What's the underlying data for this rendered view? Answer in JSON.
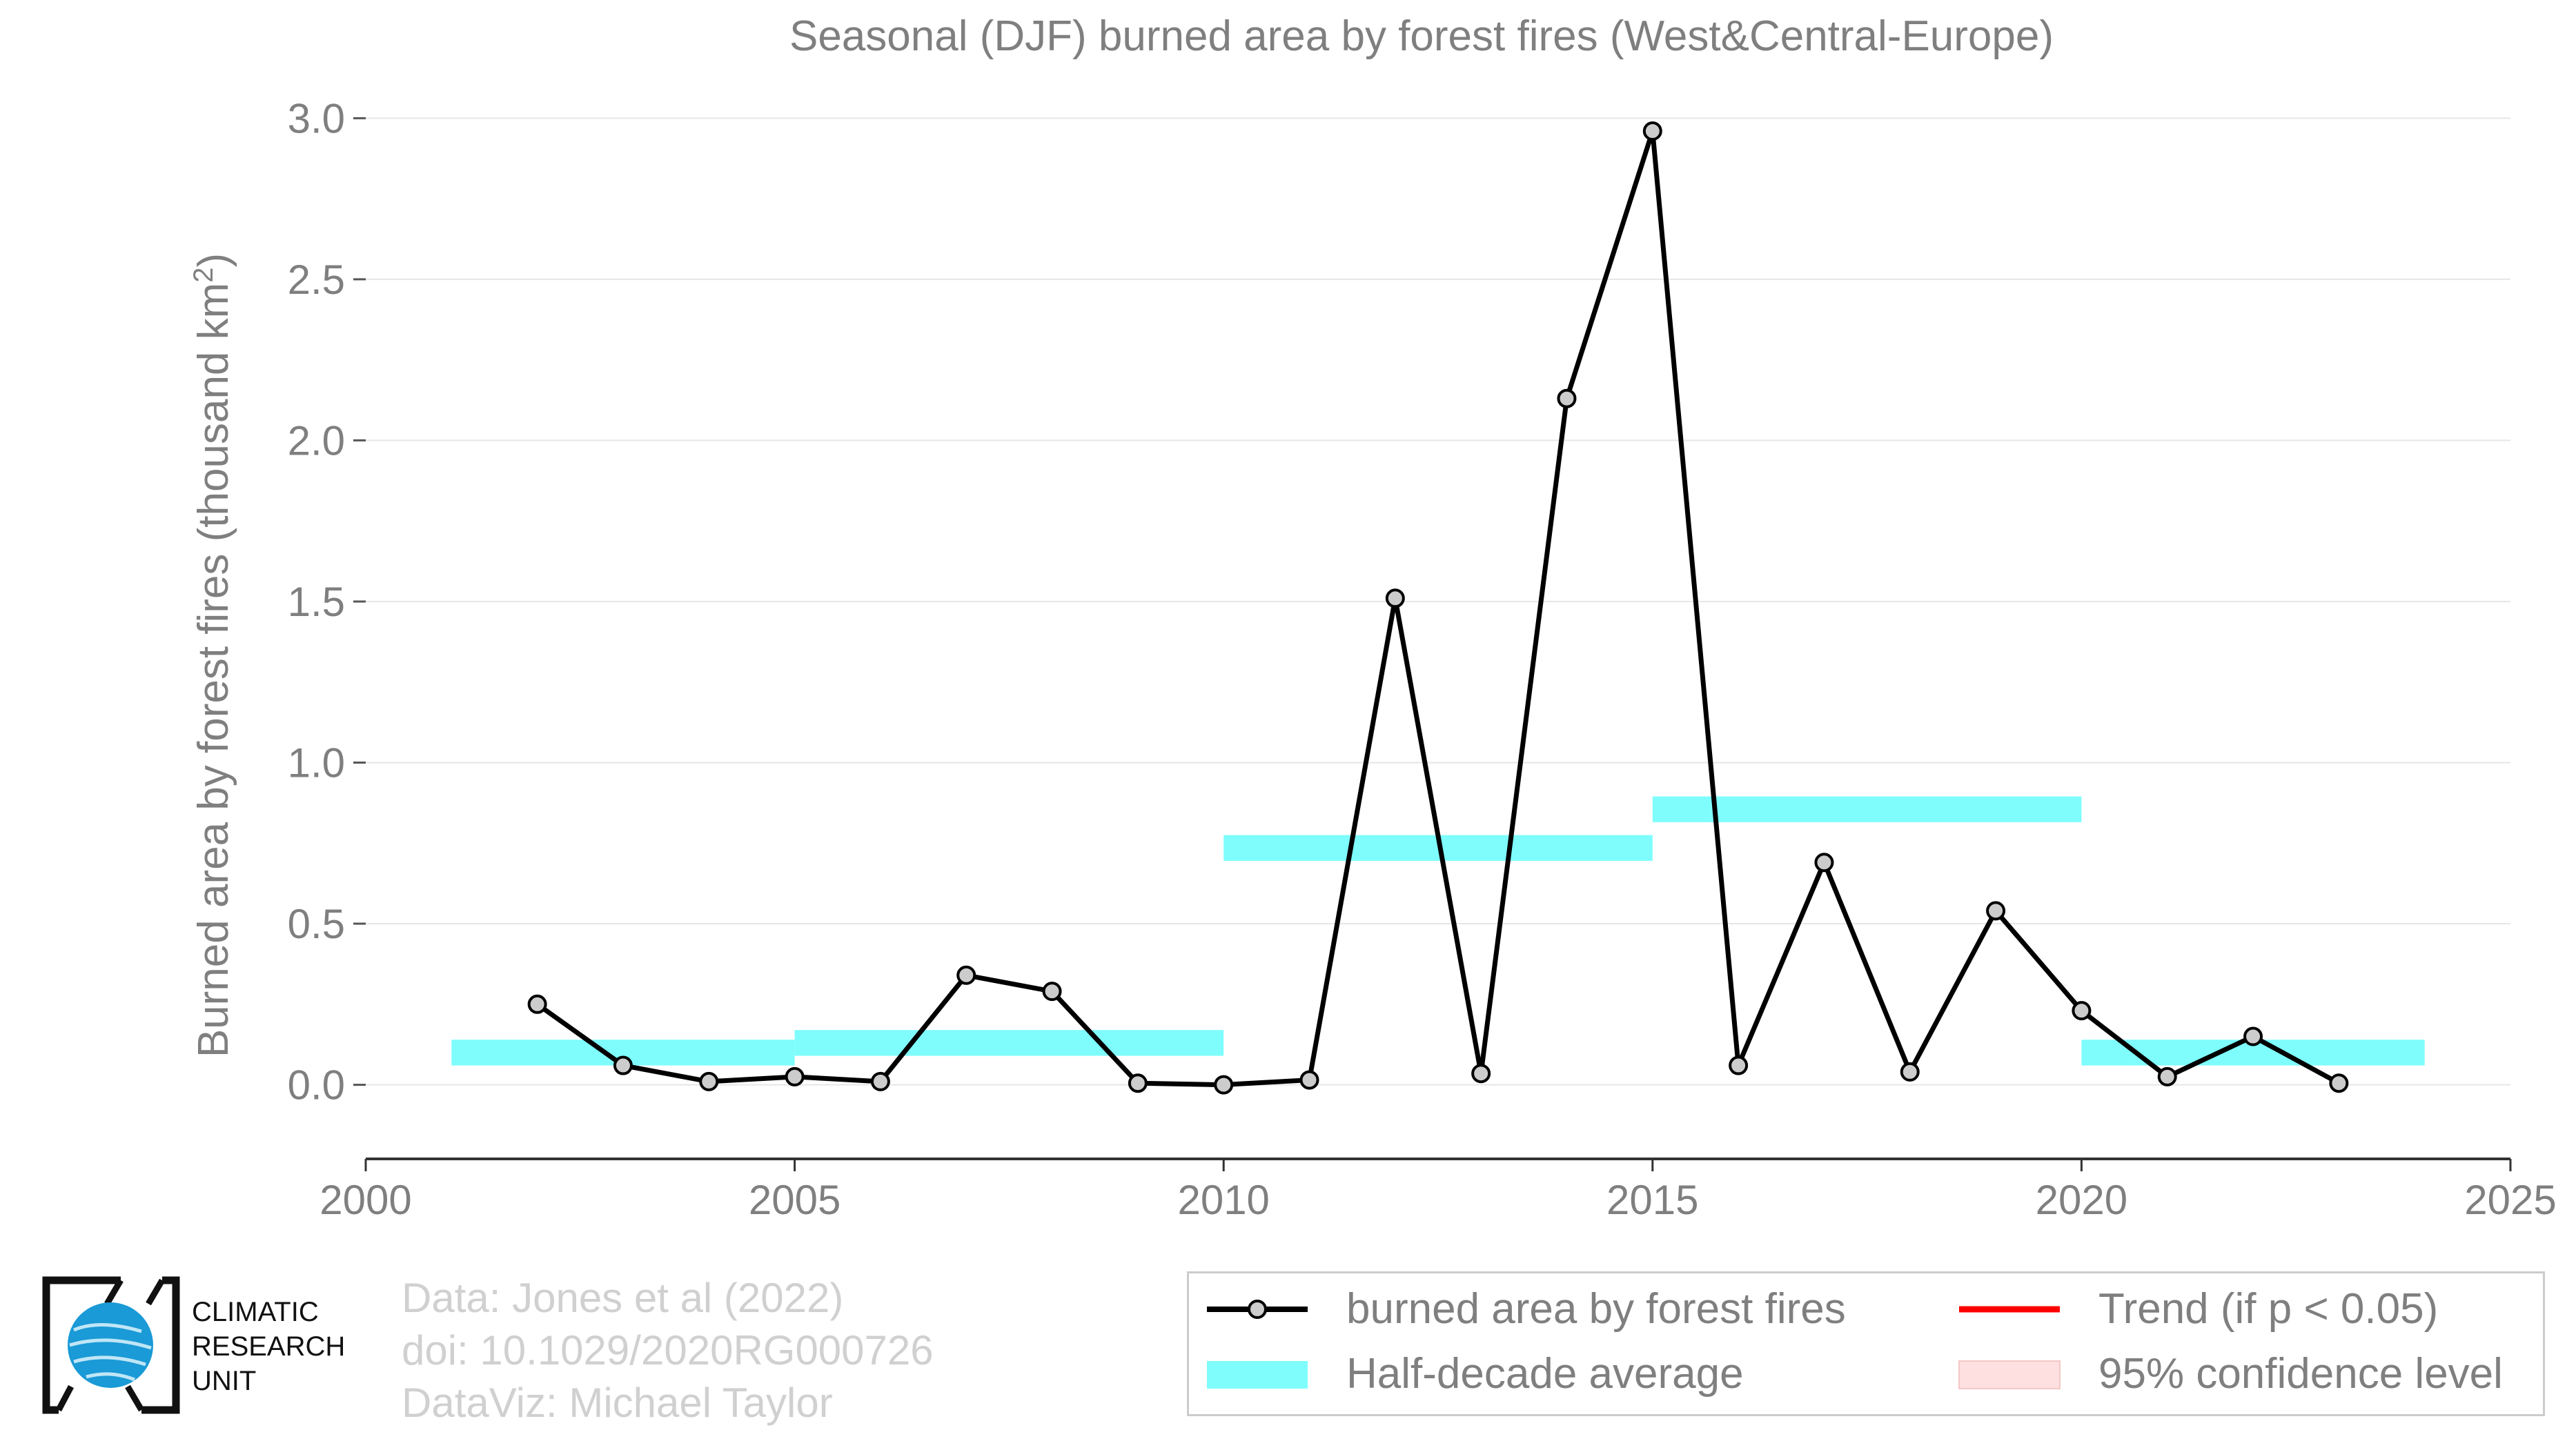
{
  "chart_data": {
    "type": "line",
    "title": "Seasonal (DJF) burned area by forest fires (West&Central-Europe)",
    "ylabel": "Burned area by forest fires (thousand km²)",
    "ylabel_main": "Burned area by forest fires (thousand km",
    "ylabel_sup": "2",
    "ylabel_end": ")",
    "xlabel": "",
    "xlim": [
      2000,
      2025
    ],
    "ylim": [
      -0.23,
      3.05
    ],
    "x_ticks": [
      2000,
      2005,
      2010,
      2015,
      2020,
      2025
    ],
    "y_ticks": [
      0.0,
      0.5,
      1.0,
      1.5,
      2.0,
      2.5,
      3.0
    ],
    "y_tick_labels": [
      "0.0",
      "0.5",
      "1.0",
      "1.5",
      "2.0",
      "2.5",
      "3.0"
    ],
    "grid": "horizontal",
    "series": [
      {
        "name": "burned area by forest fires",
        "color": "#000000",
        "marker_fill": "#cccccc",
        "x": [
          2002,
          2003,
          2004,
          2005,
          2006,
          2007,
          2008,
          2009,
          2010,
          2011,
          2012,
          2013,
          2014,
          2015,
          2016,
          2017,
          2018,
          2019,
          2020,
          2021,
          2022,
          2023
        ],
        "y": [
          0.25,
          0.06,
          0.01,
          0.025,
          0.01,
          0.34,
          0.29,
          0.005,
          0.0,
          0.015,
          1.51,
          0.035,
          2.13,
          2.96,
          0.06,
          0.69,
          0.04,
          0.54,
          0.23,
          0.025,
          0.15,
          0.005
        ]
      }
    ],
    "half_decade_average": {
      "name": "Half-decade average",
      "color": "#7ffdfd",
      "segments": [
        {
          "x0": 2001,
          "x1": 2005,
          "y": 0.1
        },
        {
          "x0": 2005,
          "x1": 2010,
          "y": 0.13
        },
        {
          "x0": 2010,
          "x1": 2015,
          "y": 0.735
        },
        {
          "x0": 2015,
          "x1": 2020,
          "y": 0.855
        },
        {
          "x0": 2020,
          "x1": 2024,
          "y": 0.1
        }
      ]
    },
    "legend": {
      "placement": "bottom-right",
      "items": [
        {
          "label": "burned area by forest fires",
          "kind": "line-marker",
          "color": "#000000"
        },
        {
          "label": "Trend (if p < 0.05)",
          "kind": "line",
          "color": "#ff0000"
        },
        {
          "label": "Half-decade average",
          "kind": "band",
          "color": "#7ffdfd"
        },
        {
          "label": "95% confidence level",
          "kind": "band",
          "color": "#ffe0e0"
        }
      ]
    }
  },
  "credits": [
    "Data: Jones et al (2022)",
    "doi: 10.1029/2020RG000726",
    "DataViz: Michael Taylor"
  ],
  "logo": {
    "icon": "globe-icon",
    "lines": [
      "CLIMATIC",
      "RESEARCH",
      "UNIT"
    ]
  }
}
